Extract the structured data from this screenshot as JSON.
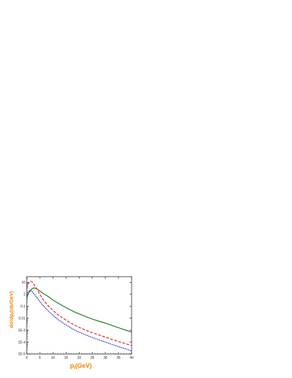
{
  "chart_data": {
    "type": "line",
    "xlabel": "p",
    "xlabel_sub": "t",
    "xlabel_unit": "(GeV)",
    "ylabel_parts": [
      "dσ/dp",
      "t",
      "(nb/GeV)"
    ],
    "xlim": [
      0,
      40
    ],
    "ylim": [
      1e-05,
      30
    ],
    "yscale": "log",
    "grid": false,
    "x_ticks": [
      "0",
      "5",
      "10",
      "15",
      "20",
      "25",
      "30",
      "35",
      "40"
    ],
    "y_ticks": [
      {
        "value": 10,
        "label": "10"
      },
      {
        "value": 1,
        "label": "1"
      },
      {
        "value": 0.1,
        "label": "0.1"
      },
      {
        "value": 0.01,
        "label": "0.01"
      },
      {
        "value": 0.001,
        "label": "1E-3"
      },
      {
        "value": 0.0001,
        "label": "1E-4"
      },
      {
        "value": 1e-05,
        "label": "1E-5"
      }
    ],
    "label_color": "#e8820c",
    "series": [
      {
        "style": "solid",
        "color": "#1f7a1f",
        "x": [
          0,
          0.5,
          1,
          1.5,
          2,
          2.5,
          3,
          3.5,
          4,
          5,
          6,
          8,
          10,
          12,
          15,
          18,
          20,
          22,
          25,
          28,
          30,
          32,
          35,
          38,
          40
        ],
        "y": [
          0.5,
          1.0,
          1.6,
          2.2,
          2.9,
          3.3,
          3.4,
          3.1,
          2.7,
          1.9,
          1.3,
          0.7,
          0.33,
          0.18,
          0.075,
          0.035,
          0.023,
          0.015,
          0.0085,
          0.0052,
          0.0038,
          0.0027,
          0.0016,
          0.00095,
          0.0007
        ]
      },
      {
        "style": "dashed",
        "color": "#e01c1c",
        "x": [
          0,
          0.5,
          1,
          1.5,
          2,
          2.5,
          3,
          4,
          5,
          6,
          8,
          10,
          12,
          15,
          18,
          20,
          22,
          25,
          28,
          30,
          32,
          35,
          38,
          40
        ],
        "y": [
          3,
          7,
          11,
          12.5,
          11,
          8.5,
          5.5,
          2.5,
          1.0,
          0.42,
          0.12,
          0.045,
          0.019,
          0.0068,
          0.0028,
          0.0017,
          0.0011,
          0.0006,
          0.00037,
          0.00026,
          0.00018,
          0.00011,
          7e-05,
          5e-05
        ]
      },
      {
        "style": "dotted",
        "color": "#1c2bd6",
        "x": [
          0,
          0.5,
          1,
          1.5,
          2,
          2.5,
          3,
          4,
          5,
          6,
          8,
          10,
          12,
          15,
          18,
          20,
          22,
          25,
          28,
          30,
          32,
          35,
          38,
          40
        ],
        "y": [
          1.0,
          1.6,
          2.0,
          2.0,
          1.7,
          1.3,
          0.95,
          0.5,
          0.25,
          0.13,
          0.045,
          0.017,
          0.0075,
          0.0027,
          0.0011,
          0.00068,
          0.00044,
          0.00024,
          0.00014,
          0.0001,
          7e-05,
          4.2e-05,
          2.6e-05,
          1.8e-05
        ]
      }
    ]
  }
}
